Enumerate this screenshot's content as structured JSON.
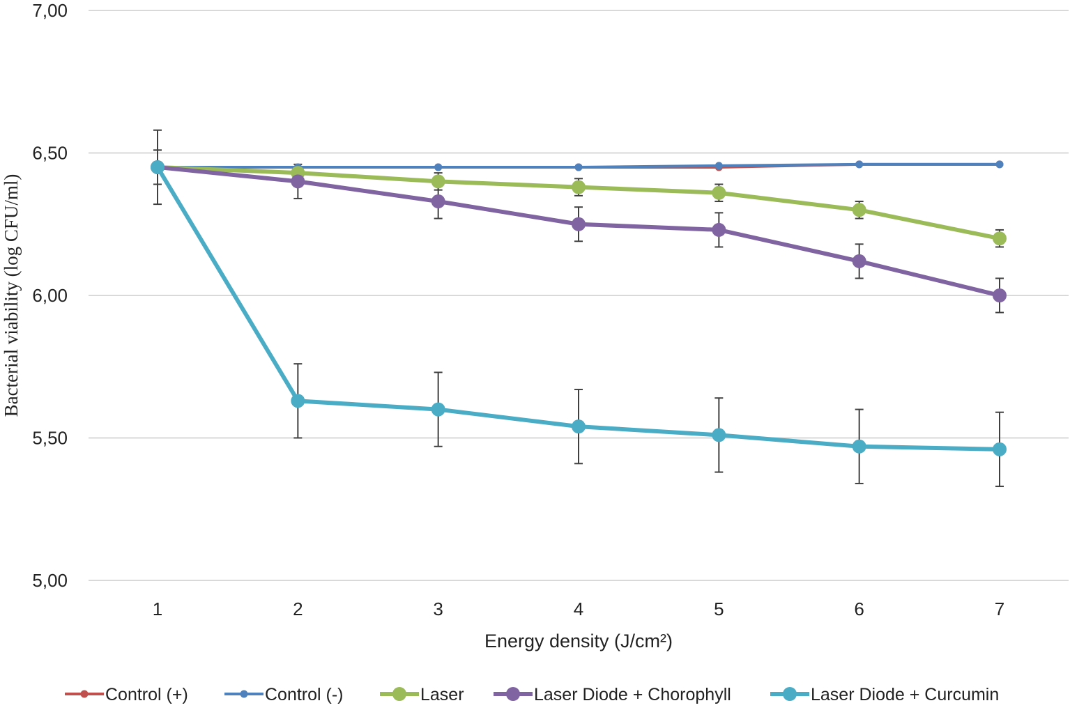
{
  "chart_data": {
    "type": "line",
    "xlabel": "Energy density (J/cm²)",
    "ylabel": "Bacterial viability (log CFU/ml)",
    "x": [
      1,
      2,
      3,
      4,
      5,
      6,
      7
    ],
    "ylim": [
      5.0,
      7.0
    ],
    "yticks": [
      "5,00",
      "5,50",
      "6,00",
      "6,50",
      "7,00"
    ],
    "ytick_values": [
      5.0,
      5.5,
      6.0,
      6.5,
      7.0
    ],
    "grid": "horizontal",
    "legend_position": "bottom",
    "series": [
      {
        "name": "Control (+)",
        "color": "#c0504d",
        "marker": "small",
        "values": [
          6.45,
          6.45,
          6.45,
          6.45,
          6.45,
          6.46,
          6.46
        ],
        "errors": []
      },
      {
        "name": "Control (-)",
        "color": "#4f81bd",
        "marker": "small",
        "values": [
          6.45,
          6.45,
          6.45,
          6.45,
          6.455,
          6.46,
          6.46
        ],
        "errors": []
      },
      {
        "name": "Laser",
        "color": "#9bbb59",
        "marker": "large",
        "values": [
          6.45,
          6.43,
          6.4,
          6.38,
          6.36,
          6.3,
          6.2
        ],
        "errors": [
          0.06,
          0.02,
          0.03,
          0.03,
          0.03,
          0.03,
          0.03
        ]
      },
      {
        "name": "Laser Diode + Chorophyll",
        "color": "#8064a2",
        "marker": "large",
        "values": [
          6.45,
          6.4,
          6.33,
          6.25,
          6.23,
          6.12,
          6.0
        ],
        "errors": [
          0.06,
          0.06,
          0.06,
          0.06,
          0.06,
          0.06,
          0.06
        ]
      },
      {
        "name": "Laser Diode + Curcumin",
        "color": "#4bacc6",
        "marker": "large",
        "values": [
          6.45,
          5.63,
          5.6,
          5.54,
          5.51,
          5.47,
          5.46
        ],
        "errors": [
          0.13,
          0.13,
          0.13,
          0.13,
          0.13,
          0.13,
          0.13
        ]
      }
    ]
  }
}
